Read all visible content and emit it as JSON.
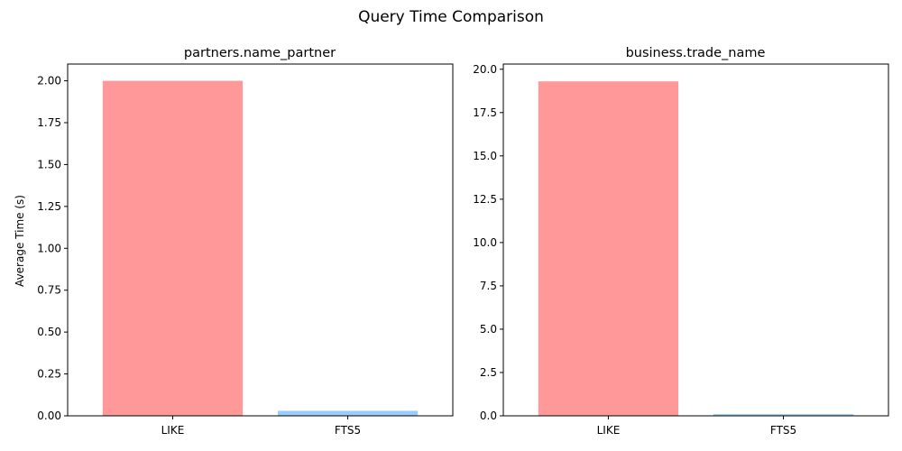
{
  "figure": {
    "title": "Query Time Comparison"
  },
  "chart_data": [
    {
      "type": "bar",
      "title": "partners.name_partner",
      "categories": [
        "LIKE",
        "FTS5"
      ],
      "values": [
        2.0,
        0.03
      ],
      "colors": [
        "#ff9999",
        "#99ccff"
      ],
      "xlabel": "",
      "ylabel": "Average Time (s)",
      "ylim": [
        0,
        2.1
      ],
      "yticks": [
        0.0,
        0.25,
        0.5,
        0.75,
        1.0,
        1.25,
        1.5,
        1.75,
        2.0
      ],
      "ytick_labels": [
        "0.00",
        "0.25",
        "0.50",
        "0.75",
        "1.00",
        "1.25",
        "1.50",
        "1.75",
        "2.00"
      ],
      "grid": false
    },
    {
      "type": "bar",
      "title": "business.trade_name",
      "categories": [
        "LIKE",
        "FTS5"
      ],
      "values": [
        19.3,
        0.1
      ],
      "colors": [
        "#ff9999",
        "#99ccff"
      ],
      "xlabel": "",
      "ylabel": "",
      "ylim": [
        0,
        20.3
      ],
      "yticks": [
        0.0,
        2.5,
        5.0,
        7.5,
        10.0,
        12.5,
        15.0,
        17.5,
        20.0
      ],
      "ytick_labels": [
        "0.0",
        "2.5",
        "5.0",
        "7.5",
        "10.0",
        "12.5",
        "15.0",
        "17.5",
        "20.0"
      ],
      "grid": false
    }
  ]
}
